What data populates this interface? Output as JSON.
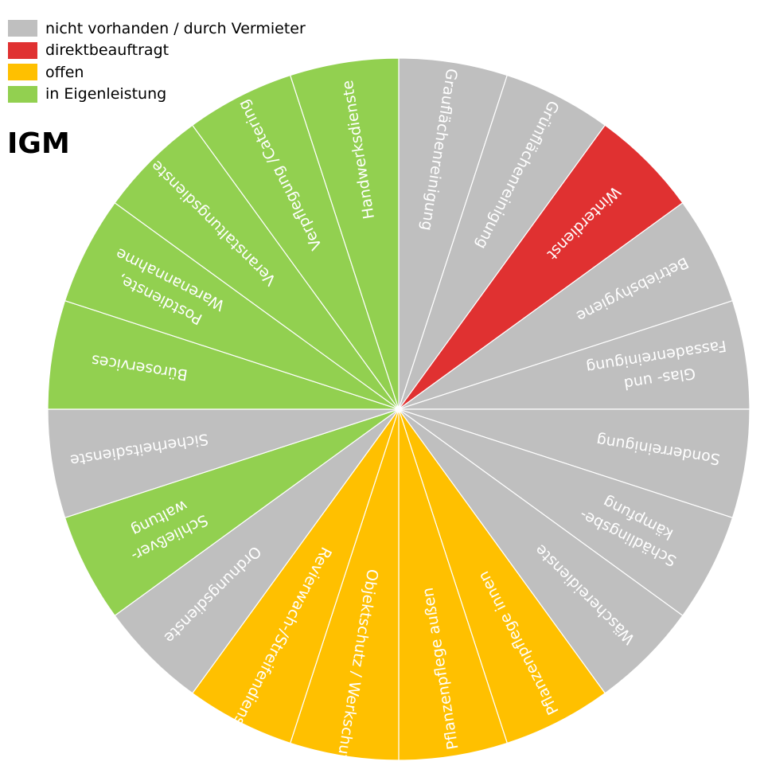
{
  "title": "IGM",
  "chart_data": {
    "type": "pie",
    "title": "IGM",
    "colors": {
      "nicht vorhanden / durch Vermieter": "#BFBFBF",
      "direktbeauftragt": "#E03131",
      "offen": "#FFC000",
      "in Eigenleistung": "#92D050"
    },
    "legend": [
      {
        "label": "nicht vorhanden / durch Vermieter",
        "color": "#BFBFBF"
      },
      {
        "label": "direktbeauftragt",
        "color": "#E03131"
      },
      {
        "label": "offen",
        "color": "#FFC000"
      },
      {
        "label": "in Eigenleistung",
        "color": "#92D050"
      }
    ],
    "legend_position": "top-left",
    "slices": [
      {
        "label": [
          "Grauflächenreinigung"
        ],
        "value": 1,
        "status": "nicht vorhanden / durch Vermieter"
      },
      {
        "label": [
          "Grünflächenreinigung"
        ],
        "value": 1,
        "status": "nicht vorhanden / durch Vermieter"
      },
      {
        "label": [
          "Winterdienst"
        ],
        "value": 1,
        "status": "direktbeauftragt"
      },
      {
        "label": [
          "Betriebshygiene"
        ],
        "value": 1,
        "status": "nicht vorhanden / durch Vermieter"
      },
      {
        "label": [
          "Glas- und",
          "Fassadenreinigung"
        ],
        "value": 1,
        "status": "nicht vorhanden / durch Vermieter"
      },
      {
        "label": [
          "Sonderreinigung"
        ],
        "value": 1,
        "status": "nicht vorhanden / durch Vermieter"
      },
      {
        "label": [
          "Schädlingsbe-",
          "kämpfung"
        ],
        "value": 1,
        "status": "nicht vorhanden / durch Vermieter"
      },
      {
        "label": [
          "Wäschereidienste"
        ],
        "value": 1,
        "status": "nicht vorhanden / durch Vermieter"
      },
      {
        "label": [
          "Pflanzenpflege innen"
        ],
        "value": 1,
        "status": "offen"
      },
      {
        "label": [
          "Pflanzenpflege außen"
        ],
        "value": 1,
        "status": "offen"
      },
      {
        "label": [
          "Objektschutz / Werkschutz"
        ],
        "value": 1,
        "status": "offen"
      },
      {
        "label": [
          "Revierwach-/Streifendienste"
        ],
        "value": 1,
        "status": "offen"
      },
      {
        "label": [
          "Ordnungsdienste"
        ],
        "value": 1,
        "status": "nicht vorhanden / durch Vermieter"
      },
      {
        "label": [
          "Schließver-",
          "waltung"
        ],
        "value": 1,
        "status": "in Eigenleistung"
      },
      {
        "label": [
          "Sicherheitsdienste"
        ],
        "value": 1,
        "status": "nicht vorhanden / durch Vermieter"
      },
      {
        "label": [
          "Büroservices"
        ],
        "value": 1,
        "status": "in Eigenleistung"
      },
      {
        "label": [
          "Postdienste,",
          "Warenannahme"
        ],
        "value": 1,
        "status": "in Eigenleistung"
      },
      {
        "label": [
          "Veranstaltungsdienste"
        ],
        "value": 1,
        "status": "in Eigenleistung"
      },
      {
        "label": [
          "Verpflegung /Catering"
        ],
        "value": 1,
        "status": "in Eigenleistung"
      },
      {
        "label": [
          "Handwerksdienste"
        ],
        "value": 1,
        "status": "in Eigenleistung"
      }
    ]
  }
}
